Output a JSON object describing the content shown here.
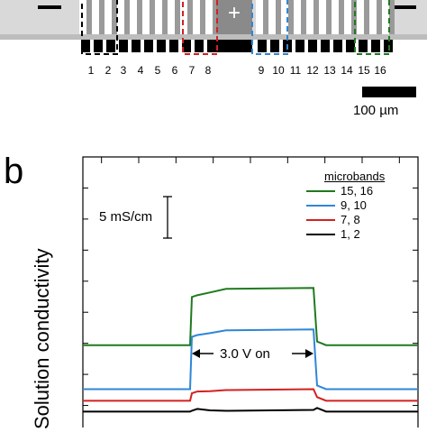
{
  "panel_a": {
    "electrode_numbers": [
      "1",
      "2",
      "3",
      "4",
      "5",
      "6",
      "7",
      "8",
      "9",
      "10",
      "11",
      "12",
      "13",
      "14",
      "15",
      "16"
    ],
    "plus_symbol": "+",
    "scale_label": "100  µm",
    "groups": [
      {
        "bands": [
          1,
          2
        ],
        "color": "#000000"
      },
      {
        "bands": [
          7,
          8
        ],
        "color": "#d42020"
      },
      {
        "bands": [
          9,
          10
        ],
        "color": "#2f86d6"
      },
      {
        "bands": [
          15,
          16
        ],
        "color": "#1f7a1f"
      }
    ]
  },
  "panel_b": {
    "letter": "b",
    "scale_bar_label": "5 mS/cm",
    "annotation": "3.0 V on"
  },
  "chart_data": {
    "type": "line",
    "title": "",
    "xlabel": "",
    "ylabel": "Solution conductivity",
    "legend_title": "microbands",
    "legend_position": "top-right",
    "x_ticks_count": 9,
    "on_interval": {
      "label": "3.0 V on"
    },
    "series": [
      {
        "name": "15, 16",
        "color": "#1f7a1f",
        "baseline": 8.4,
        "step_start": 14.2,
        "plateau_end": 15.3
      },
      {
        "name": "9, 10",
        "color": "#2f86d6",
        "baseline": 3.1,
        "step_start": 9.4,
        "plateau_end": 10.3
      },
      {
        "name": "7, 8",
        "color": "#d42020",
        "baseline": 1.7,
        "step_start": 2.6,
        "plateau_end": 3.1
      },
      {
        "name": "1, 2",
        "color": "#000000",
        "baseline": 0.4,
        "step_start": 0.5,
        "plateau_end": 0.6
      }
    ],
    "scale_bar_value": "5 mS/cm"
  }
}
